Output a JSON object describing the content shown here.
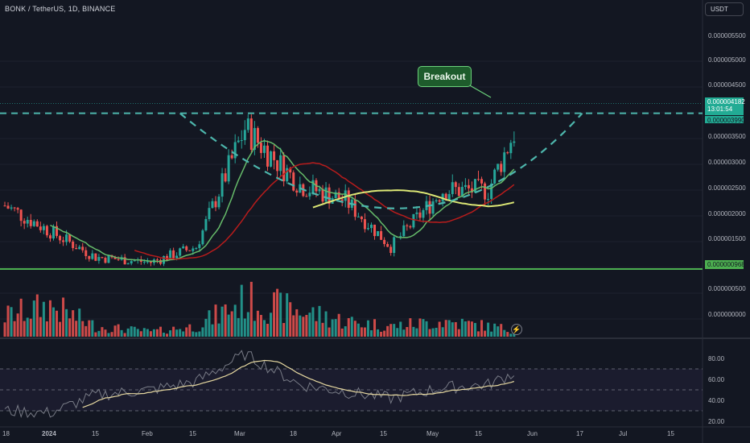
{
  "header": {
    "symbol_title": "BONK / TetherUS, 1D, BINANCE",
    "currency": "USDT"
  },
  "price_axis": [
    "0.000005500",
    "0.000005000",
    "0.000004500",
    "0.000003500",
    "0.000003000",
    "0.000002500",
    "0.000002000",
    "0.000001500",
    "0.000000500",
    "0.000000000"
  ],
  "price_tags": {
    "current_price": "0.000004182",
    "countdown": "13:01:54",
    "resistance": "0.000003990",
    "support": "0.000000968"
  },
  "rsi_axis": [
    "80.00",
    "60.00",
    "40.00",
    "20.00"
  ],
  "time_axis": [
    "18",
    "2024",
    "15",
    "Feb",
    "15",
    "Mar",
    "18",
    "Apr",
    "15",
    "May",
    "15",
    "Jun",
    "17",
    "Jul",
    "15"
  ],
  "annotation": {
    "breakout_label": "Breakout"
  },
  "colors": {
    "background": "#131722",
    "up": "#26a69a",
    "down": "#ef5350",
    "ma_fast": "#66bb6a",
    "ma_mid": "#b71c1c",
    "ma_slow": "#dce775",
    "resistance": "#4db6ac",
    "support": "#4caf50",
    "rsi_line": "#787b86",
    "rsi_ma": "#e6d8a0"
  },
  "chart_data": {
    "type": "candlestick",
    "x": [
      "2023-12-18",
      "2024-01-01",
      "2024-01-15",
      "2024-02-01",
      "2024-02-15",
      "2024-03-01",
      "2024-03-18",
      "2024-04-01",
      "2024-04-15",
      "2024-05-01",
      "2024-05-15",
      "2024-05-27"
    ],
    "close": [
      2.2e-06,
      1.7e-06,
      1.2e-06,
      1.1e-06,
      1.4e-06,
      3.7e-06,
      2.6e-06,
      2.3e-06,
      1.4e-06,
      2.5e-06,
      2.5e-06,
      4.182e-06
    ],
    "volume": [
      4e-07,
      6e-07,
      2e-07,
      1e-07,
      2e-07,
      7e-07,
      5e-07,
      3e-07,
      2e-07,
      3e-07,
      2e-07,
      1e-07
    ],
    "rsi": [
      30,
      28,
      45,
      50,
      58,
      84,
      55,
      48,
      42,
      52,
      55,
      72
    ],
    "ylim": [
      8e-07,
      5.8e-06
    ],
    "levels": {
      "resistance": 3.99e-06,
      "support": 9.68e-07
    },
    "legend": "none",
    "grid": true
  }
}
